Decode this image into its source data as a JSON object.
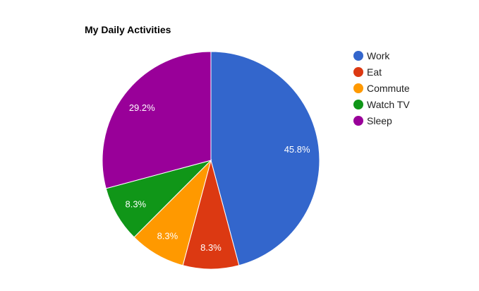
{
  "chart_data": {
    "type": "pie",
    "title": "My Daily Activities",
    "categories": [
      "Work",
      "Eat",
      "Commute",
      "Watch TV",
      "Sleep"
    ],
    "values": [
      11,
      2,
      2,
      2,
      7
    ],
    "percent_labels": [
      "45.8%",
      "8.3%",
      "8.3%",
      "8.3%",
      "29.2%"
    ],
    "colors": [
      "#3366cc",
      "#dc3912",
      "#ff9900",
      "#109618",
      "#990099"
    ],
    "start_angle_deg": 0,
    "direction": "clockwise",
    "legend_position": "right"
  }
}
